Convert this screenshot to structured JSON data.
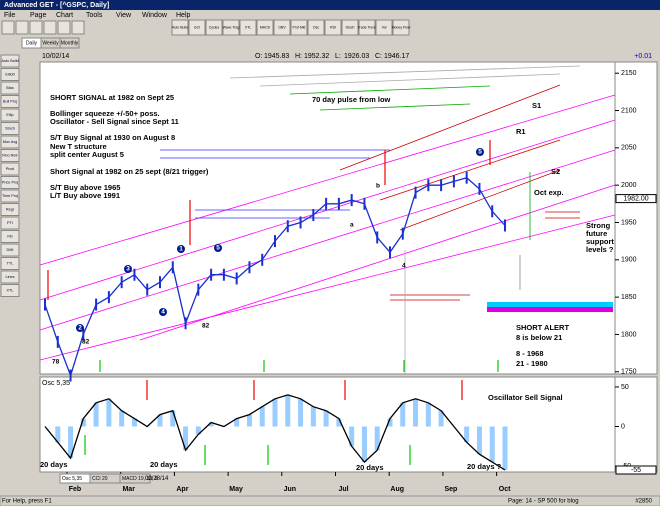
{
  "window": {
    "title": "Advanced GET - [^GSPC, Daily]"
  },
  "menu": [
    "File",
    "Page",
    "Chart",
    "Tools",
    "View",
    "Window",
    "Help"
  ],
  "toolbar": [
    "Auto Build",
    "GCI",
    "Cycles",
    "Wave Trag",
    "XTL",
    "MACD",
    "OBV",
    "Prof Mkt",
    "Osc",
    "RSI",
    "Stoch",
    "Trade Trend",
    "Vol",
    "Money Flow"
  ],
  "left_toolbar": [
    "Auto Build",
    "Elliott",
    "Bias",
    "Bull Proj",
    "Ellip",
    "Stoch",
    "Mov Avg",
    "Fibo Retr",
    "Pivot",
    "Price Proj",
    "Time Proj",
    "Regr",
    "PTI",
    "Fib",
    "DMI",
    "TTL",
    "Lines",
    "XTL"
  ],
  "tabs": [
    "Daily",
    "Weekly",
    "Monthly"
  ],
  "chart_data": {
    "type": "line",
    "date": "10/02/14",
    "ohlc": [
      {
        "label": "O:",
        "value": 1945.83
      },
      {
        "label": "H:",
        "value": 1952.32
      },
      {
        "label": "L:",
        "value": 1926.03
      },
      {
        "label": "C:",
        "value": 1946.17
      }
    ],
    "change": "+0.01",
    "series": [
      {
        "name": "^GSPC",
        "color": "#1a2fd0",
        "values": [
          1840,
          1790,
          1745,
          1800,
          1840,
          1850,
          1870,
          1880,
          1860,
          1870,
          1890,
          1815,
          1860,
          1880,
          1880,
          1875,
          1890,
          1900,
          1925,
          1945,
          1950,
          1960,
          1975,
          1975,
          1980,
          1975,
          1930,
          1910,
          1935,
          1990,
          2000,
          2000,
          2005,
          2010,
          1995,
          1965,
          1946
        ]
      }
    ],
    "ylim": [
      1747,
      2165
    ],
    "yticks": [
      2150,
      2100,
      2050,
      2000,
      1950,
      1900,
      1850,
      1800,
      1750
    ],
    "current_label": "1982.00",
    "months": [
      "Feb",
      "Mar",
      "Apr",
      "May",
      "Jun",
      "Jul",
      "Aug",
      "Sep",
      "Oct"
    ],
    "annotations": [
      "SHORT SIGNAL at 1982 on Sept 25",
      "Bollinger squeeze +/-50+ poss.",
      "Oscillator - Sell Signal since Sept 11",
      "S/T Buy Signal at 1930 on August 8",
      "New T structure",
      "split center August 5",
      "Short Signal at 1982 on 25 sept (8/21 trigger)",
      "S/T Buy above 1965",
      "L/T Buy above 1991",
      "70 day pulse from low",
      "S1",
      "R1",
      "S2",
      "Oct exp.",
      "Strong",
      "future",
      "support",
      "levels ?",
      "SHORT ALERT",
      "8 is below 21",
      "8  - 1968",
      "21 - 1980"
    ],
    "wave_labels": [
      "78",
      "82",
      "82",
      "4",
      "1",
      "2",
      "3",
      "4",
      "5",
      "5",
      "a",
      "b"
    ]
  },
  "oscillator": {
    "type": "line",
    "label": "Osc 5,35",
    "series": [
      {
        "name": "Osc 5,35",
        "color": "#000000",
        "values": [
          0,
          -20,
          -40,
          10,
          30,
          35,
          20,
          10,
          0,
          15,
          20,
          -30,
          -10,
          5,
          0,
          10,
          15,
          25,
          35,
          40,
          35,
          25,
          20,
          10,
          -25,
          -45,
          -30,
          10,
          30,
          35,
          30,
          20,
          0,
          -20,
          -35,
          -45,
          -55
        ]
      }
    ],
    "ylim": [
      -55,
      55
    ],
    "yticks": [
      50,
      0,
      -50
    ],
    "current_value": -55,
    "annotations": [
      "Oscillator Sell Signal",
      "20 days",
      "20 days",
      "20 days",
      "20 days ?"
    ]
  },
  "bottom_tabs": [
    "Osc 5,35",
    "CCI 20",
    "MACD 19, 39, 9"
  ],
  "bottom_date": "02/28/14",
  "status": [
    "For Help, press F1",
    "Page: 14 - SP 500 for blog",
    "#2850"
  ]
}
